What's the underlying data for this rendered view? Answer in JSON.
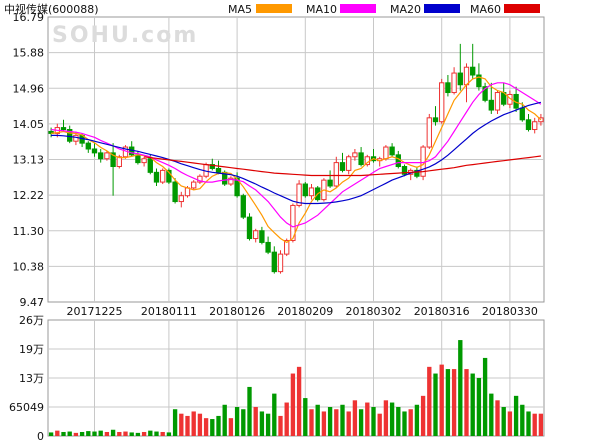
{
  "chart_data": {
    "type": "candlestick",
    "title": "中视传媒(600088)",
    "watermark": "SOHU.com",
    "legend": [
      {
        "label": "MA5",
        "color": "#ff9900"
      },
      {
        "label": "MA10",
        "color": "#ff00ff"
      },
      {
        "label": "MA20",
        "color": "#0000cc"
      },
      {
        "label": "MA60",
        "color": "#dd0000"
      }
    ],
    "colors": {
      "up": "#ee3333",
      "down": "#009900",
      "grid": "#c8c8c8"
    },
    "price_axis": {
      "ticks": [
        "16.79",
        "15.88",
        "14.96",
        "14.05",
        "13.13",
        "12.22",
        "11.30",
        "10.38",
        "9.47"
      ],
      "ylim": [
        9.47,
        16.79
      ]
    },
    "volume_axis": {
      "ticks": [
        "26万",
        "19万",
        "13万",
        "65049",
        "0"
      ],
      "ylim": [
        0,
        260000
      ]
    },
    "x_labels": [
      "20171225",
      "20180111",
      "20180126",
      "20180209",
      "20180302",
      "20180316",
      "20180330"
    ],
    "x_label_index": [
      7,
      19,
      30,
      41,
      52,
      63,
      74
    ],
    "candles": [
      [
        13.85,
        13.95,
        13.7,
        13.8
      ],
      [
        13.8,
        14.05,
        13.7,
        13.95
      ],
      [
        13.95,
        14.15,
        13.85,
        13.9
      ],
      [
        13.9,
        14.0,
        13.55,
        13.6
      ],
      [
        13.6,
        13.85,
        13.5,
        13.75
      ],
      [
        13.75,
        13.8,
        13.45,
        13.55
      ],
      [
        13.55,
        13.6,
        13.3,
        13.4
      ],
      [
        13.4,
        13.55,
        13.2,
        13.3
      ],
      [
        13.3,
        13.4,
        13.05,
        13.15
      ],
      [
        13.15,
        13.35,
        13.1,
        13.3
      ],
      [
        13.3,
        13.55,
        12.2,
        12.95
      ],
      [
        12.95,
        13.25,
        12.9,
        13.2
      ],
      [
        13.2,
        13.5,
        13.15,
        13.45
      ],
      [
        13.45,
        13.6,
        13.2,
        13.25
      ],
      [
        13.25,
        13.35,
        13.0,
        13.05
      ],
      [
        13.05,
        13.2,
        12.95,
        13.15
      ],
      [
        13.15,
        13.25,
        12.75,
        12.8
      ],
      [
        12.8,
        12.9,
        12.45,
        12.55
      ],
      [
        12.55,
        12.9,
        12.5,
        12.85
      ],
      [
        12.85,
        12.9,
        12.5,
        12.55
      ],
      [
        12.55,
        12.65,
        12.0,
        12.05
      ],
      [
        12.05,
        12.3,
        11.9,
        12.2
      ],
      [
        12.2,
        12.45,
        12.15,
        12.4
      ],
      [
        12.4,
        12.6,
        12.35,
        12.55
      ],
      [
        12.55,
        12.75,
        12.5,
        12.7
      ],
      [
        12.7,
        13.05,
        12.65,
        13.0
      ],
      [
        13.0,
        13.15,
        12.85,
        12.9
      ],
      [
        12.9,
        13.1,
        12.75,
        12.8
      ],
      [
        12.8,
        12.85,
        12.45,
        12.5
      ],
      [
        12.5,
        12.7,
        12.45,
        12.65
      ],
      [
        12.65,
        12.8,
        12.15,
        12.2
      ],
      [
        12.2,
        12.25,
        11.6,
        11.65
      ],
      [
        11.65,
        11.75,
        11.05,
        11.1
      ],
      [
        11.1,
        11.35,
        11.0,
        11.3
      ],
      [
        11.3,
        11.4,
        10.95,
        11.0
      ],
      [
        11.0,
        11.15,
        10.7,
        10.75
      ],
      [
        10.75,
        10.9,
        10.2,
        10.25
      ],
      [
        10.25,
        10.8,
        10.2,
        10.7
      ],
      [
        10.7,
        11.1,
        10.65,
        11.05
      ],
      [
        11.05,
        12.0,
        11.0,
        11.95
      ],
      [
        11.95,
        12.6,
        11.9,
        12.5
      ],
      [
        12.5,
        12.55,
        12.15,
        12.2
      ],
      [
        12.2,
        12.5,
        12.1,
        12.4
      ],
      [
        12.4,
        12.45,
        12.05,
        12.1
      ],
      [
        12.1,
        12.65,
        12.05,
        12.6
      ],
      [
        12.6,
        12.85,
        12.4,
        12.45
      ],
      [
        12.45,
        13.2,
        12.4,
        13.05
      ],
      [
        13.05,
        13.3,
        12.8,
        12.85
      ],
      [
        12.85,
        13.25,
        12.75,
        13.2
      ],
      [
        13.2,
        13.4,
        13.1,
        13.3
      ],
      [
        13.3,
        13.45,
        12.95,
        13.0
      ],
      [
        13.0,
        13.25,
        12.95,
        13.2
      ],
      [
        13.2,
        13.4,
        13.05,
        13.1
      ],
      [
        13.1,
        13.2,
        12.95,
        13.15
      ],
      [
        13.15,
        13.5,
        13.1,
        13.45
      ],
      [
        13.45,
        13.55,
        13.2,
        13.25
      ],
      [
        13.25,
        13.35,
        12.9,
        12.95
      ],
      [
        12.95,
        13.0,
        12.7,
        12.75
      ],
      [
        12.75,
        12.9,
        12.6,
        12.85
      ],
      [
        12.85,
        12.95,
        12.65,
        12.7
      ],
      [
        12.7,
        13.5,
        12.6,
        13.45
      ],
      [
        13.45,
        14.3,
        13.4,
        14.2
      ],
      [
        14.2,
        14.5,
        14.0,
        14.1
      ],
      [
        14.1,
        15.2,
        14.05,
        15.1
      ],
      [
        15.1,
        15.3,
        14.75,
        14.85
      ],
      [
        14.85,
        15.5,
        14.8,
        15.35
      ],
      [
        15.35,
        16.1,
        14.9,
        15.05
      ],
      [
        15.05,
        15.6,
        14.6,
        15.5
      ],
      [
        15.5,
        16.1,
        15.2,
        15.3
      ],
      [
        15.3,
        15.6,
        14.9,
        15.0
      ],
      [
        15.0,
        15.1,
        14.6,
        14.65
      ],
      [
        14.65,
        15.1,
        14.3,
        14.4
      ],
      [
        14.4,
        14.9,
        14.3,
        14.85
      ],
      [
        14.85,
        15.1,
        14.5,
        14.55
      ],
      [
        14.55,
        14.9,
        14.45,
        14.8
      ],
      [
        14.8,
        15.0,
        14.35,
        14.45
      ],
      [
        14.45,
        14.6,
        14.1,
        14.15
      ],
      [
        14.15,
        14.3,
        13.85,
        13.9
      ],
      [
        13.9,
        14.2,
        13.8,
        14.1
      ],
      [
        14.1,
        14.3,
        14.0,
        14.2
      ]
    ],
    "volume": [
      8000,
      12000,
      9000,
      10000,
      7000,
      9000,
      11000,
      10000,
      12000,
      9000,
      14000,
      9000,
      10000,
      8000,
      7000,
      9000,
      12000,
      10000,
      9000,
      8000,
      60000,
      50000,
      45000,
      55000,
      50000,
      40000,
      38000,
      45000,
      70000,
      40000,
      65000,
      60000,
      110000,
      65000,
      55000,
      50000,
      95000,
      45000,
      75000,
      140000,
      155000,
      85000,
      60000,
      70000,
      55000,
      65000,
      60000,
      70000,
      55000,
      80000,
      60000,
      75000,
      65000,
      50000,
      80000,
      75000,
      65000,
      55000,
      60000,
      70000,
      90000,
      155000,
      140000,
      160000,
      150000,
      150000,
      215000,
      150000,
      140000,
      130000,
      175000,
      95000,
      80000,
      65000,
      55000,
      90000,
      70000,
      55000,
      50000,
      50000
    ],
    "ma5": [
      13.8,
      13.82,
      13.85,
      13.81,
      13.8,
      13.76,
      13.64,
      13.56,
      13.44,
      13.35,
      13.24,
      13.18,
      13.18,
      13.21,
      13.25,
      13.23,
      13.19,
      13.05,
      12.95,
      12.8,
      12.6,
      12.45,
      12.4,
      12.35,
      12.38,
      12.56,
      12.7,
      12.77,
      12.79,
      12.77,
      12.63,
      12.43,
      12.19,
      11.95,
      11.7,
      11.41,
      11.25,
      11.1,
      11.0,
      11.1,
      11.5,
      11.75,
      12.05,
      12.25,
      12.35,
      12.3,
      12.4,
      12.55,
      12.65,
      12.85,
      12.9,
      13.05,
      13.15,
      13.1,
      13.15,
      13.2,
      13.15,
      13.05,
      12.98,
      12.93,
      13.0,
      13.25,
      13.6,
      13.95,
      14.3,
      14.65,
      14.85,
      15.05,
      15.2,
      15.25,
      15.2,
      15.0,
      14.9,
      14.85,
      14.7,
      14.6,
      14.55,
      14.4,
      14.3,
      14.15
    ],
    "ma10": [
      13.9,
      13.88,
      13.87,
      13.85,
      13.83,
      13.8,
      13.75,
      13.7,
      13.62,
      13.55,
      13.48,
      13.4,
      13.35,
      13.3,
      13.28,
      13.24,
      13.2,
      13.12,
      13.05,
      12.98,
      12.9,
      12.8,
      12.72,
      12.65,
      12.58,
      12.55,
      12.55,
      12.58,
      12.6,
      12.62,
      12.6,
      12.56,
      12.45,
      12.35,
      12.2,
      12.05,
      11.85,
      11.65,
      11.5,
      11.4,
      11.45,
      11.5,
      11.6,
      11.7,
      11.85,
      12.0,
      12.15,
      12.3,
      12.4,
      12.5,
      12.6,
      12.7,
      12.8,
      12.9,
      12.95,
      13.0,
      13.05,
      13.05,
      13.05,
      13.05,
      13.05,
      13.1,
      13.2,
      13.4,
      13.6,
      13.85,
      14.1,
      14.35,
      14.6,
      14.8,
      14.95,
      15.05,
      15.1,
      15.1,
      15.05,
      14.95,
      14.85,
      14.75,
      14.65,
      14.55
    ],
    "ma20": [
      13.75,
      13.75,
      13.74,
      13.72,
      13.7,
      13.67,
      13.64,
      13.6,
      13.56,
      13.52,
      13.48,
      13.44,
      13.4,
      13.37,
      13.34,
      13.3,
      13.26,
      13.22,
      13.18,
      13.13,
      13.08,
      13.02,
      12.97,
      12.92,
      12.87,
      12.83,
      12.8,
      12.78,
      12.76,
      12.74,
      12.7,
      12.64,
      12.57,
      12.5,
      12.42,
      12.35,
      12.27,
      12.2,
      12.13,
      12.06,
      12.02,
      12.0,
      12.0,
      12.0,
      12.01,
      12.02,
      12.04,
      12.07,
      12.1,
      12.15,
      12.2,
      12.28,
      12.36,
      12.44,
      12.52,
      12.6,
      12.66,
      12.72,
      12.78,
      12.83,
      12.88,
      12.94,
      13.02,
      13.12,
      13.24,
      13.38,
      13.52,
      13.66,
      13.8,
      13.92,
      14.02,
      14.12,
      14.2,
      14.28,
      14.34,
      14.4,
      14.46,
      14.52,
      14.56,
      14.6
    ],
    "ma60": [
      null,
      null,
      null,
      null,
      null,
      null,
      null,
      null,
      null,
      null,
      null,
      null,
      null,
      null,
      null,
      13.2,
      13.18,
      13.16,
      13.14,
      13.12,
      13.1,
      13.08,
      13.06,
      13.04,
      13.02,
      13.0,
      12.98,
      12.96,
      12.94,
      12.92,
      12.9,
      12.88,
      12.86,
      12.84,
      12.82,
      12.8,
      12.78,
      12.77,
      12.76,
      12.75,
      12.74,
      12.73,
      12.72,
      12.72,
      12.72,
      12.72,
      12.72,
      12.72,
      12.72,
      12.72,
      12.72,
      12.73,
      12.74,
      12.75,
      12.76,
      12.77,
      12.78,
      12.79,
      12.8,
      12.81,
      12.82,
      12.84,
      12.86,
      12.88,
      12.9,
      12.92,
      12.95,
      12.98,
      13.0,
      13.02,
      13.04,
      13.06,
      13.08,
      13.1,
      13.12,
      13.14,
      13.16,
      13.18,
      13.2,
      13.22
    ]
  }
}
